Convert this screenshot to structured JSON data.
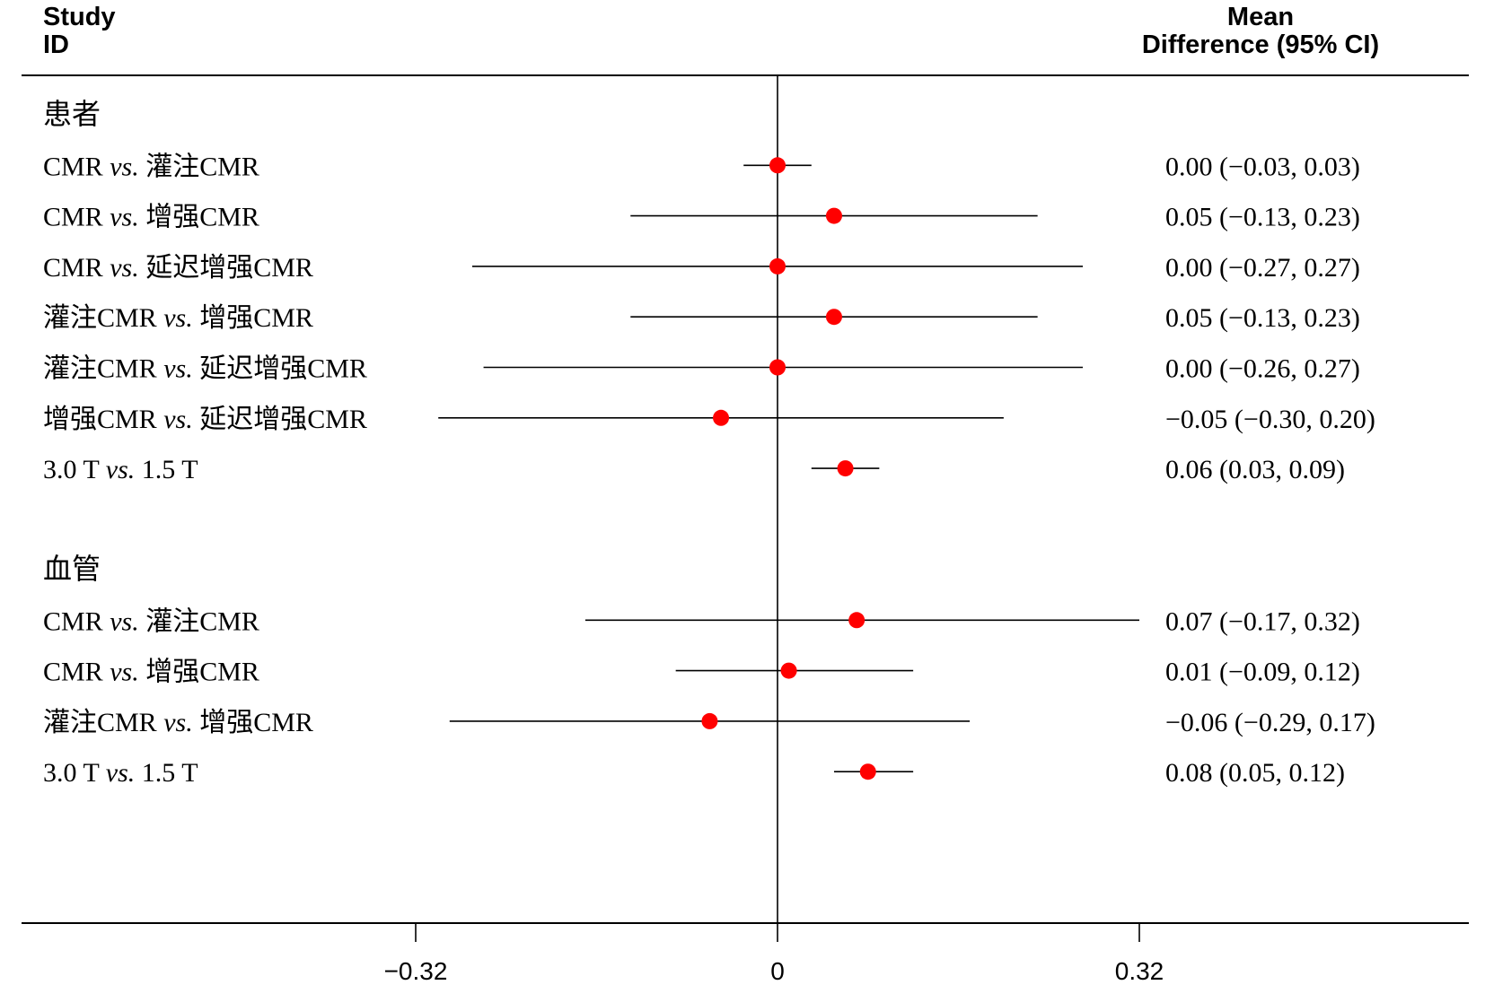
{
  "header": {
    "study_line1": "Study",
    "study_line2": "ID",
    "md_line1": "Mean",
    "md_line2": "Difference (95% CI)"
  },
  "chart_data": {
    "type": "forest",
    "xlim": [
      -0.32,
      0.32
    ],
    "xticks": [
      -0.32,
      0,
      0.32
    ],
    "xtick_labels": [
      "−0.32",
      "0",
      "0.32"
    ],
    "reference_line": 0,
    "point_color": "#ff0000",
    "groups": [
      {
        "label": "患者",
        "rows": [
          {
            "label_pre": "CMR ",
            "label_mid": "vs.",
            "label_post": " 灌注CMR",
            "mean": 0.0,
            "lower": -0.03,
            "upper": 0.03,
            "ci_text": "0.00 (−0.03, 0.03)"
          },
          {
            "label_pre": "CMR ",
            "label_mid": "vs.",
            "label_post": " 增强CMR",
            "mean": 0.05,
            "lower": -0.13,
            "upper": 0.23,
            "ci_text": "0.05 (−0.13, 0.23)"
          },
          {
            "label_pre": "CMR ",
            "label_mid": "vs.",
            "label_post": " 延迟增强CMR",
            "mean": 0.0,
            "lower": -0.27,
            "upper": 0.27,
            "ci_text": "0.00 (−0.27, 0.27)"
          },
          {
            "label_pre": "灌注CMR ",
            "label_mid": "vs.",
            "label_post": " 增强CMR",
            "mean": 0.05,
            "lower": -0.13,
            "upper": 0.23,
            "ci_text": "0.05 (−0.13, 0.23)"
          },
          {
            "label_pre": "灌注CMR ",
            "label_mid": "vs.",
            "label_post": " 延迟增强CMR",
            "mean": 0.0,
            "lower": -0.26,
            "upper": 0.27,
            "ci_text": "0.00 (−0.26, 0.27)"
          },
          {
            "label_pre": "增强CMR ",
            "label_mid": "vs.",
            "label_post": " 延迟增强CMR",
            "mean": -0.05,
            "lower": -0.3,
            "upper": 0.2,
            "ci_text": "−0.05 (−0.30, 0.20)"
          },
          {
            "label_pre": "3.0 T ",
            "label_mid": "vs.",
            "label_post": " 1.5 T",
            "mean": 0.06,
            "lower": 0.03,
            "upper": 0.09,
            "ci_text": "0.06 (0.03, 0.09)"
          }
        ]
      },
      {
        "label": "血管",
        "rows": [
          {
            "label_pre": "CMR ",
            "label_mid": "vs.",
            "label_post": " 灌注CMR",
            "mean": 0.07,
            "lower": -0.17,
            "upper": 0.32,
            "ci_text": "0.07 (−0.17, 0.32)"
          },
          {
            "label_pre": "CMR ",
            "label_mid": "vs.",
            "label_post": " 增强CMR",
            "mean": 0.01,
            "lower": -0.09,
            "upper": 0.12,
            "ci_text": "0.01 (−0.09, 0.12)"
          },
          {
            "label_pre": "灌注CMR ",
            "label_mid": "vs.",
            "label_post": " 增强CMR",
            "mean": -0.06,
            "lower": -0.29,
            "upper": 0.17,
            "ci_text": "−0.06 (−0.29, 0.17)"
          },
          {
            "label_pre": "3.0 T ",
            "label_mid": "vs.",
            "label_post": " 1.5 T",
            "mean": 0.08,
            "lower": 0.05,
            "upper": 0.12,
            "ci_text": "0.08 (0.05, 0.12)"
          }
        ]
      }
    ]
  }
}
